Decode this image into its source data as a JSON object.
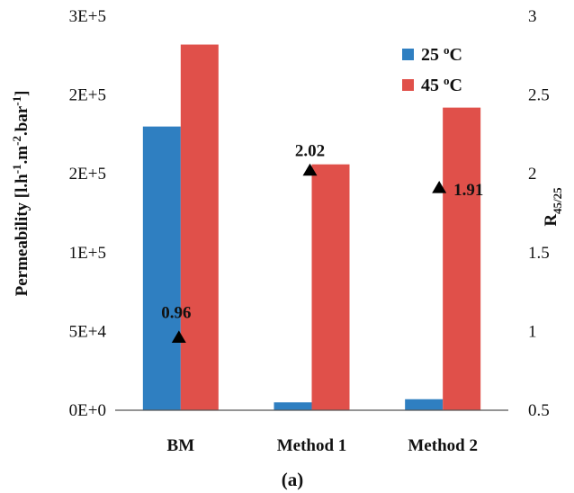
{
  "chart_data": {
    "type": "bar",
    "categories": [
      "BM",
      "Method 1",
      "Method 2"
    ],
    "series": [
      {
        "name": "25 oC",
        "name_main": "25 ",
        "name_sup": "o",
        "name_tail": "C",
        "color": "#2f7fc1",
        "values": [
          180000,
          5000,
          7000
        ]
      },
      {
        "name": "45 oC",
        "name_main": "45 ",
        "name_sup": "o",
        "name_tail": "C",
        "color": "#e0504a",
        "values": [
          232000,
          156000,
          192000
        ]
      }
    ],
    "ratio_series": {
      "marker": "triangle",
      "color": "#000000",
      "values": [
        0.96,
        2.02,
        1.91
      ],
      "labels": [
        "0.96",
        "2.02",
        "1.91"
      ]
    },
    "y_ticks": [
      "0E+0",
      "5E+4",
      "1E+5",
      "2E+5",
      "2E+5",
      "3E+5"
    ],
    "y_tick_values": [
      0,
      50000,
      100000,
      150000,
      200000,
      250000
    ],
    "y2_ticks": [
      "0.5",
      "1",
      "1.5",
      "2",
      "2.5",
      "3"
    ],
    "y2_tick_values": [
      0.5,
      1.0,
      1.5,
      2.0,
      2.5,
      3.0
    ],
    "ylim": [
      0,
      250000
    ],
    "y2lim": [
      0.5,
      3.0
    ],
    "ylabel": {
      "main": "Permeability [l.h",
      "sup1": "-1",
      "mid1": ".m",
      "sup2": "-2",
      "mid2": ".bar",
      "sup3": "-1",
      "end": "]"
    },
    "y2label": {
      "main": "R",
      "sub": "45/25"
    },
    "legend_position": "top-right",
    "caption": "(a)"
  }
}
